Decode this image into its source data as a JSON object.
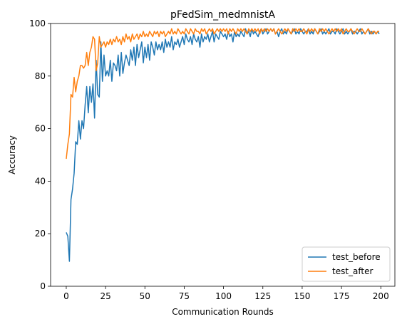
{
  "chart_data": {
    "type": "line",
    "title": "pFedSim_medmnistA",
    "xlabel": "Communication Rounds",
    "ylabel": "Accuracy",
    "xlim": [
      -9.95,
      208.95
    ],
    "ylim": [
      0,
      100
    ],
    "xticks": [
      0,
      25,
      50,
      75,
      100,
      125,
      150,
      175,
      200
    ],
    "yticks": [
      0,
      20,
      40,
      60,
      80,
      100
    ],
    "legend_position": "lower-right",
    "grid": false,
    "series": [
      {
        "name": "test_before",
        "color": "#1f77b4",
        "x": [
          0,
          1,
          2,
          3,
          4,
          5,
          6,
          7,
          8,
          9,
          10,
          11,
          12,
          13,
          14,
          15,
          16,
          17,
          18,
          19,
          20,
          21,
          22,
          23,
          24,
          25,
          26,
          27,
          28,
          29,
          30,
          31,
          32,
          33,
          34,
          35,
          36,
          37,
          38,
          39,
          40,
          41,
          42,
          43,
          44,
          45,
          46,
          47,
          48,
          49,
          50,
          51,
          52,
          53,
          54,
          55,
          56,
          57,
          58,
          59,
          60,
          61,
          62,
          63,
          64,
          65,
          66,
          67,
          68,
          69,
          70,
          71,
          72,
          73,
          74,
          75,
          76,
          77,
          78,
          79,
          80,
          81,
          82,
          83,
          84,
          85,
          86,
          87,
          88,
          89,
          90,
          91,
          92,
          93,
          94,
          95,
          96,
          97,
          98,
          99,
          100,
          101,
          102,
          103,
          104,
          105,
          106,
          107,
          108,
          109,
          110,
          111,
          112,
          113,
          114,
          115,
          116,
          117,
          118,
          119,
          120,
          121,
          122,
          123,
          124,
          125,
          126,
          127,
          128,
          129,
          130,
          131,
          132,
          133,
          134,
          135,
          136,
          137,
          138,
          139,
          140,
          141,
          142,
          143,
          144,
          145,
          146,
          147,
          148,
          149,
          150,
          151,
          152,
          153,
          154,
          155,
          156,
          157,
          158,
          159,
          160,
          161,
          162,
          163,
          164,
          165,
          166,
          167,
          168,
          169,
          170,
          171,
          172,
          173,
          174,
          175,
          176,
          177,
          178,
          179,
          180,
          181,
          182,
          183,
          184,
          185,
          186,
          187,
          188,
          189,
          190,
          191,
          192,
          193,
          194,
          195,
          196,
          197,
          198,
          199
        ],
        "y": [
          20.5,
          19,
          9.5,
          33,
          37,
          43,
          55,
          54,
          63,
          56,
          63,
          60,
          69,
          76,
          66,
          76,
          70,
          77,
          64,
          86,
          73,
          72,
          93,
          78,
          88,
          80,
          82,
          80,
          86,
          78,
          85,
          84,
          82,
          88,
          80,
          89,
          81,
          85,
          88,
          86,
          84,
          90,
          86,
          91,
          84,
          92,
          87,
          90,
          93,
          85,
          91,
          87,
          92,
          86,
          93,
          91,
          88,
          93,
          90,
          92,
          90,
          93,
          89,
          94,
          91,
          93,
          91,
          95,
          90,
          93,
          92,
          94,
          91,
          93,
          95,
          92,
          96,
          94,
          93,
          95,
          92,
          96,
          94,
          93,
          95,
          91,
          96,
          93,
          95,
          94,
          96,
          93,
          95,
          97,
          93,
          96,
          95,
          94,
          97,
          96,
          95,
          96,
          94,
          97,
          95,
          96,
          93,
          97,
          95,
          96,
          95,
          97,
          96,
          95,
          98,
          96,
          97,
          95,
          98,
          96,
          97,
          96,
          95,
          97,
          98,
          96,
          97,
          98,
          96,
          97,
          98,
          97,
          98,
          96,
          97,
          95,
          97,
          98,
          96,
          97,
          96,
          98,
          97,
          96,
          97,
          98,
          96,
          97,
          96,
          98,
          97,
          96,
          97,
          97,
          98,
          96,
          97,
          96,
          98,
          97,
          96,
          97,
          98,
          96,
          97,
          96,
          97,
          98,
          96,
          97,
          97,
          96,
          98,
          97,
          96,
          97,
          98,
          96,
          97,
          96,
          97,
          98,
          96,
          97,
          97,
          96,
          97,
          98,
          96,
          97,
          96,
          97,
          98,
          96,
          97,
          96,
          97,
          96,
          97,
          96
        ]
      },
      {
        "name": "test_after",
        "color": "#ff7f0e",
        "x": [
          0,
          1,
          2,
          3,
          4,
          5,
          6,
          7,
          8,
          9,
          10,
          11,
          12,
          13,
          14,
          15,
          16,
          17,
          18,
          19,
          20,
          21,
          22,
          23,
          24,
          25,
          26,
          27,
          28,
          29,
          30,
          31,
          32,
          33,
          34,
          35,
          36,
          37,
          38,
          39,
          40,
          41,
          42,
          43,
          44,
          45,
          46,
          47,
          48,
          49,
          50,
          51,
          52,
          53,
          54,
          55,
          56,
          57,
          58,
          59,
          60,
          61,
          62,
          63,
          64,
          65,
          66,
          67,
          68,
          69,
          70,
          71,
          72,
          73,
          74,
          75,
          76,
          77,
          78,
          79,
          80,
          81,
          82,
          83,
          84,
          85,
          86,
          87,
          88,
          89,
          90,
          91,
          92,
          93,
          94,
          95,
          96,
          97,
          98,
          99,
          100,
          101,
          102,
          103,
          104,
          105,
          106,
          107,
          108,
          109,
          110,
          111,
          112,
          113,
          114,
          115,
          116,
          117,
          118,
          119,
          120,
          121,
          122,
          123,
          124,
          125,
          126,
          127,
          128,
          129,
          130,
          131,
          132,
          133,
          134,
          135,
          136,
          137,
          138,
          139,
          140,
          141,
          142,
          143,
          144,
          145,
          146,
          147,
          148,
          149,
          150,
          151,
          152,
          153,
          154,
          155,
          156,
          157,
          158,
          159,
          160,
          161,
          162,
          163,
          164,
          165,
          166,
          167,
          168,
          169,
          170,
          171,
          172,
          173,
          174,
          175,
          176,
          177,
          178,
          179,
          180,
          181,
          182,
          183,
          184,
          185,
          186,
          187,
          188,
          189,
          190,
          191,
          192,
          193,
          194,
          195,
          196,
          197,
          198,
          199
        ],
        "y": [
          48.5,
          54,
          58,
          73,
          72,
          79.5,
          74,
          78,
          80,
          84,
          84,
          83,
          84,
          89,
          84,
          89,
          91,
          95,
          94,
          82,
          85,
          95,
          91,
          92,
          93,
          91,
          93,
          92,
          94,
          92,
          94,
          93,
          95,
          93,
          94,
          92,
          95,
          93,
          96,
          94,
          95,
          93,
          96,
          94,
          95,
          96,
          94,
          96,
          95,
          97,
          95,
          96,
          95,
          97,
          96,
          95,
          97,
          96,
          97,
          95,
          97,
          96,
          97,
          95,
          96,
          97,
          96,
          98,
          96,
          97,
          96,
          98,
          97,
          96,
          97,
          96,
          98,
          97,
          96,
          98,
          97,
          96,
          98,
          97,
          97,
          96,
          98,
          97,
          98,
          96,
          97,
          98,
          97,
          98,
          96,
          97,
          98,
          97,
          98,
          97,
          98,
          97,
          98,
          96,
          98,
          97,
          98,
          97,
          96,
          98,
          97,
          98,
          97,
          98,
          97,
          96,
          98,
          97,
          98,
          97,
          98,
          97,
          98,
          96,
          98,
          97,
          98,
          97,
          98,
          97,
          98,
          97,
          98,
          96,
          97,
          98,
          97,
          96,
          97,
          98,
          97,
          98,
          97,
          96,
          98,
          97,
          98,
          97,
          98,
          97,
          97,
          98,
          97,
          96,
          98,
          97,
          98,
          97,
          98,
          97,
          96,
          98,
          97,
          98,
          97,
          98,
          97,
          96,
          97,
          98,
          97,
          98,
          97,
          98,
          97,
          98,
          96,
          97,
          98,
          97,
          97,
          98,
          97,
          96,
          97,
          98,
          97,
          97,
          98,
          97,
          96,
          97,
          98,
          97,
          96,
          97,
          97,
          96,
          97,
          97
        ]
      }
    ]
  }
}
